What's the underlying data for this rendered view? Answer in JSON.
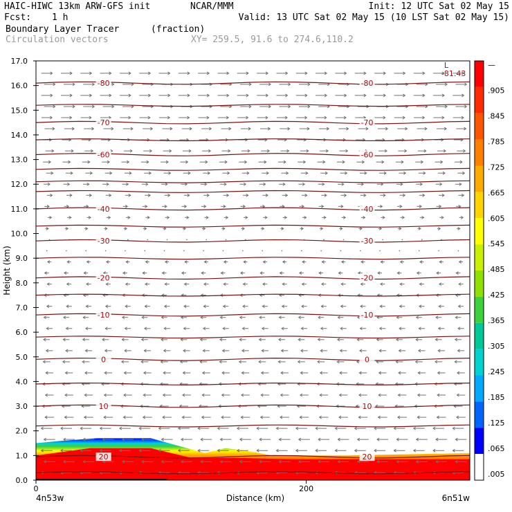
{
  "header": {
    "model": "HAIC-HIWC 13km ARW-GFS init",
    "org": "NCAR/MMM",
    "init": "Init: 12 UTC Sat 02 May 15",
    "fcst_label": "Fcst:",
    "fcst_value": "1 h",
    "valid": "Valid: 13 UTC Sat 02 May 15 (10 LST Sat 02 May 15)",
    "field_name": "Boundary Layer Tracer",
    "field_units": "(fraction)",
    "vector_name": "Circulation vectors",
    "xy_range": "XY= 259.5, 91.6 to 274.6,110.2"
  },
  "colors": {
    "contour": "#7a1010",
    "vector": "#707070",
    "accent_text": "#a01010"
  },
  "chart_data": {
    "type": "heatmap",
    "ylabel": "Height (km)",
    "xlabel": "Distance (km)",
    "ylim": [
      0,
      17
    ],
    "xlim": [
      0,
      321
    ],
    "y_ticks": [
      "0.0",
      "1.0",
      "2.0",
      "3.0",
      "4.0",
      "5.0",
      "6.0",
      "7.0",
      "8.0",
      "9.0",
      "10.0",
      "11.0",
      "12.0",
      "13.0",
      "14.0",
      "15.0",
      "16.0",
      "17.0"
    ],
    "x_ticks": [
      {
        "value": 0,
        "label": "0"
      },
      {
        "value": 200,
        "label": "200"
      }
    ],
    "x_left_label": "4n53w",
    "x_right_label": "6n51w",
    "colorbar": {
      "labels": [
        "—",
        ".905",
        ".845",
        ".785",
        ".725",
        ".665",
        ".605",
        ".545",
        ".485",
        ".425",
        ".365",
        ".305",
        ".245",
        ".185",
        ".125",
        ".065",
        ".005"
      ],
      "colors": [
        "#ff0000",
        "#ff2a00",
        "#ff5500",
        "#ff7f00",
        "#ffaa00",
        "#ffd400",
        "#ffff00",
        "#c8f000",
        "#8ee000",
        "#3cd23c",
        "#00c896",
        "#00d2d2",
        "#00aaff",
        "#0064ff",
        "#0000ff",
        "#ffffff"
      ]
    },
    "contour_levels": [
      {
        "height": 0.95,
        "label": "20"
      },
      {
        "height": 3.0,
        "label": "10"
      },
      {
        "height": 4.9,
        "label": "0"
      },
      {
        "height": 6.7,
        "label": "-10"
      },
      {
        "height": 8.2,
        "label": "-20"
      },
      {
        "height": 9.7,
        "label": "-30"
      },
      {
        "height": 11.0,
        "label": "-40"
      },
      {
        "height": 13.2,
        "label": "-60"
      },
      {
        "height": 14.5,
        "label": "-70"
      },
      {
        "height": 16.1,
        "label": "-80"
      }
    ],
    "extra_contours": [
      0.3,
      2.2,
      3.9,
      5.8,
      7.5,
      9.0,
      10.3,
      11.7,
      12.1,
      12.6,
      13.8,
      15.2
    ],
    "minimum": {
      "symbol": "L",
      "value": "-81.43",
      "x": 302,
      "height": 16.5
    },
    "tracer_top": [
      {
        "x": 0,
        "h": 1.5
      },
      {
        "x": 20,
        "h": 1.6
      },
      {
        "x": 45,
        "h": 1.7
      },
      {
        "x": 85,
        "h": 1.7
      },
      {
        "x": 105,
        "h": 1.4
      },
      {
        "x": 125,
        "h": 1.1
      },
      {
        "x": 140,
        "h": 1.3
      },
      {
        "x": 155,
        "h": 1.2
      },
      {
        "x": 175,
        "h": 1.0
      },
      {
        "x": 230,
        "h": 1.0
      },
      {
        "x": 321,
        "h": 1.1
      }
    ],
    "red_top": [
      {
        "x": 0,
        "h": 1.0
      },
      {
        "x": 40,
        "h": 1.3
      },
      {
        "x": 85,
        "h": 1.3
      },
      {
        "x": 115,
        "h": 0.9
      },
      {
        "x": 150,
        "h": 0.9
      },
      {
        "x": 190,
        "h": 0.85
      },
      {
        "x": 321,
        "h": 0.85
      }
    ]
  }
}
